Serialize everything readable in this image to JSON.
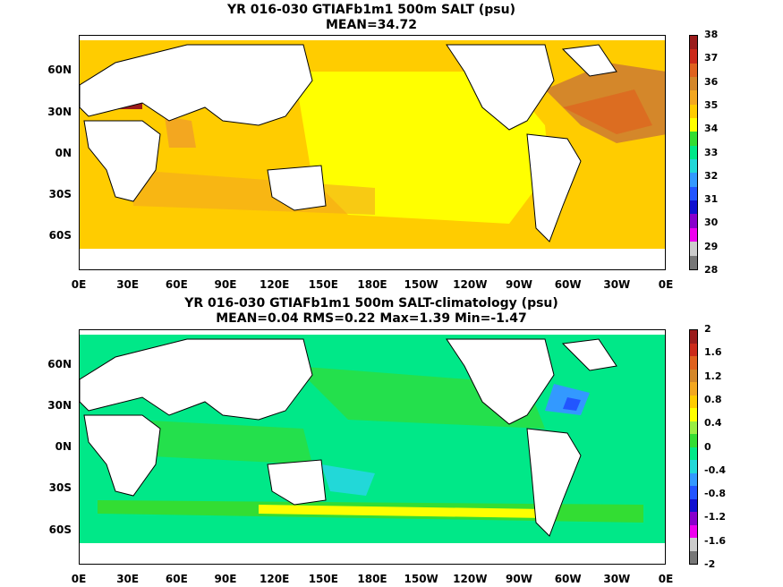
{
  "top": {
    "title_line1": "YR 016-030 GTIAFb1m1 500m SALT (psu)",
    "title_line2": "MEAN=34.72",
    "lat_labels": [
      "60N",
      "30N",
      "0N",
      "30S",
      "60S"
    ],
    "lon_labels": [
      "0E",
      "30E",
      "60E",
      "90E",
      "120E",
      "150E",
      "180E",
      "150W",
      "120W",
      "90W",
      "60W",
      "30W",
      "0E"
    ],
    "colorbar_labels": [
      "38",
      "37",
      "36",
      "35",
      "34",
      "33",
      "32",
      "31",
      "30",
      "29",
      "28"
    ],
    "colorbar_colors": [
      "#9b1c1c",
      "#cc2a1a",
      "#e0621e",
      "#d4872a",
      "#f3a720",
      "#ffcc00",
      "#ffff00",
      "#33dd33",
      "#00e888",
      "#22d8d8",
      "#3399ff",
      "#2255ff",
      "#1010d0",
      "#8800cc",
      "#ee00ee",
      "#cccccc",
      "#777777"
    ]
  },
  "bottom": {
    "title_line1": "YR 016-030 GTIAFb1m1 500m SALT-climatology (psu)",
    "title_line2": "MEAN=0.04   RMS=0.22   Max=1.39   Min=-1.47",
    "lat_labels": [
      "60N",
      "30N",
      "0N",
      "30S",
      "60S"
    ],
    "lon_labels": [
      "0E",
      "30E",
      "60E",
      "90E",
      "120E",
      "150E",
      "180E",
      "150W",
      "120W",
      "90W",
      "60W",
      "30W",
      "0E"
    ],
    "colorbar_labels": [
      "2",
      "1.6",
      "1.2",
      "0.8",
      "0.4",
      "0",
      "-0.4",
      "-0.8",
      "-1.2",
      "-1.6",
      "-2"
    ],
    "colorbar_colors": [
      "#9b1c1c",
      "#cc2a1a",
      "#e0621e",
      "#d4872a",
      "#f3a720",
      "#ffcc00",
      "#ffff00",
      "#99ee44",
      "#33dd33",
      "#00e888",
      "#22d8d8",
      "#3399ff",
      "#2255ff",
      "#1010d0",
      "#8800cc",
      "#ee00ee",
      "#cccccc",
      "#777777"
    ]
  }
}
